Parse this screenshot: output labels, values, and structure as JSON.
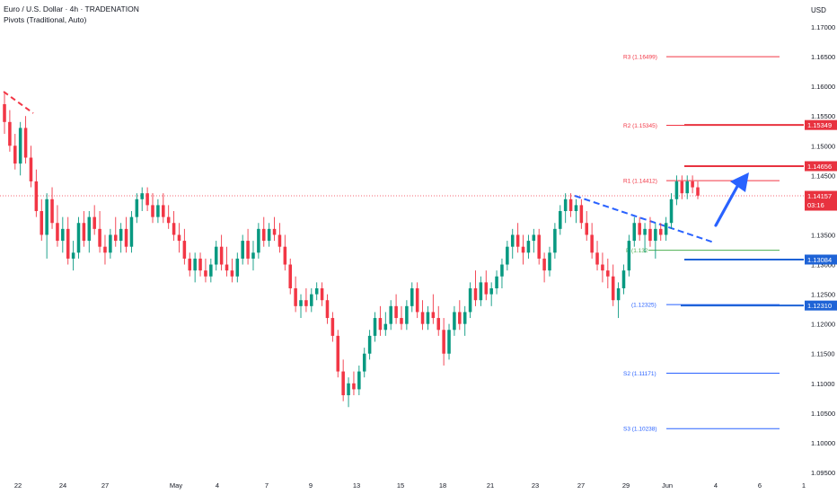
{
  "header": {
    "title": "Euro / U.S. Dollar · 4h · TRADENATION",
    "indicator": "Pivots (Traditional, Auto)"
  },
  "currency_label": "USD",
  "colors": {
    "bull": "#089981",
    "bear": "#f23645",
    "pivot_red": "#f23645",
    "pivot_blue": "#2962ff",
    "pivot_green": "#4caf50",
    "arrow": "#2962ff",
    "tag_blue": "#1e63d6",
    "tag_red": "#e8323f"
  },
  "chart_data": {
    "type": "candlestick",
    "y_axis": {
      "min": 1.0945,
      "max": 1.1745,
      "ticks": [
        "1.17000",
        "1.16500",
        "1.16000",
        "1.15500",
        "1.15000",
        "1.14500",
        "1.14000",
        "1.13500",
        "1.13000",
        "1.12500",
        "1.12000",
        "1.11500",
        "1.11000",
        "1.10500",
        "1.10000",
        "1.09500"
      ]
    },
    "x_axis": {
      "ticks": [
        "22",
        "24",
        "27",
        "May",
        "4",
        "7",
        "9",
        "13",
        "15",
        "18",
        "21",
        "23",
        "27",
        "29",
        "Jun",
        "4",
        "6",
        "1"
      ]
    },
    "pivots": [
      {
        "name": "R3",
        "value": 1.16499,
        "label": "R3 (1.16499)",
        "color": "red"
      },
      {
        "name": "R2",
        "value": 1.15345,
        "label": "R2 (1.15345)",
        "color": "red"
      },
      {
        "name": "R1",
        "value": 1.14412,
        "label": "R1 (1.14412)",
        "color": "red"
      },
      {
        "name": "P",
        "value": 1.1324,
        "label": "P (1.132",
        "color": "green"
      },
      {
        "name": "S1",
        "value": 1.12325,
        "label": "(1.12325)",
        "color": "blue"
      },
      {
        "name": "S2",
        "value": 1.11171,
        "label": "S2 (1.11171)",
        "color": "blue"
      },
      {
        "name": "S3",
        "value": 1.10238,
        "label": "S3 (1.10238)",
        "color": "blue"
      }
    ],
    "price_tags": [
      {
        "value": 1.15349,
        "label": "1.15349",
        "color": "red"
      },
      {
        "value": 1.14656,
        "label": "1.14656",
        "color": "red"
      },
      {
        "value": 1.14157,
        "label": "1.14157",
        "sub": "03:16",
        "color": "red"
      },
      {
        "value": 1.13084,
        "label": "1.13084",
        "color": "blue"
      },
      {
        "value": 1.1231,
        "label": "1.12310",
        "color": "blue"
      }
    ],
    "current_price": 1.14157,
    "candles": [
      [
        1.157,
        1.159,
        1.152,
        1.154
      ],
      [
        1.154,
        1.156,
        1.149,
        1.15
      ],
      [
        1.15,
        1.152,
        1.146,
        1.147
      ],
      [
        1.147,
        1.154,
        1.145,
        1.153
      ],
      [
        1.153,
        1.155,
        1.147,
        1.148
      ],
      [
        1.148,
        1.15,
        1.143,
        1.144
      ],
      [
        1.144,
        1.146,
        1.138,
        1.139
      ],
      [
        1.139,
        1.141,
        1.134,
        1.135
      ],
      [
        1.135,
        1.142,
        1.131,
        1.141
      ],
      [
        1.141,
        1.143,
        1.136,
        1.137
      ],
      [
        1.137,
        1.14,
        1.133,
        1.134
      ],
      [
        1.134,
        1.138,
        1.132,
        1.136
      ],
      [
        1.136,
        1.138,
        1.13,
        1.131
      ],
      [
        1.131,
        1.134,
        1.129,
        1.132
      ],
      [
        1.132,
        1.138,
        1.131,
        1.137
      ],
      [
        1.137,
        1.139,
        1.133,
        1.134
      ],
      [
        1.134,
        1.139,
        1.132,
        1.138
      ],
      [
        1.138,
        1.14,
        1.135,
        1.136
      ],
      [
        1.136,
        1.139,
        1.132,
        1.133
      ],
      [
        1.133,
        1.135,
        1.13,
        1.132
      ],
      [
        1.132,
        1.136,
        1.131,
        1.135
      ],
      [
        1.135,
        1.138,
        1.133,
        1.134
      ],
      [
        1.134,
        1.137,
        1.132,
        1.136
      ],
      [
        1.136,
        1.138,
        1.132,
        1.133
      ],
      [
        1.133,
        1.139,
        1.132,
        1.138
      ],
      [
        1.138,
        1.142,
        1.137,
        1.141
      ],
      [
        1.141,
        1.143,
        1.139,
        1.142
      ],
      [
        1.142,
        1.143,
        1.139,
        1.14
      ],
      [
        1.14,
        1.142,
        1.137,
        1.138
      ],
      [
        1.138,
        1.141,
        1.137,
        1.14
      ],
      [
        1.14,
        1.142,
        1.137,
        1.138
      ],
      [
        1.138,
        1.14,
        1.136,
        1.137
      ],
      [
        1.137,
        1.139,
        1.134,
        1.135
      ],
      [
        1.135,
        1.137,
        1.132,
        1.134
      ],
      [
        1.134,
        1.136,
        1.13,
        1.131
      ],
      [
        1.131,
        1.132,
        1.128,
        1.129
      ],
      [
        1.129,
        1.132,
        1.127,
        1.131
      ],
      [
        1.131,
        1.132,
        1.128,
        1.129
      ],
      [
        1.129,
        1.131,
        1.127,
        1.128
      ],
      [
        1.128,
        1.131,
        1.127,
        1.13
      ],
      [
        1.13,
        1.134,
        1.129,
        1.133
      ],
      [
        1.133,
        1.135,
        1.129,
        1.13
      ],
      [
        1.13,
        1.133,
        1.128,
        1.129
      ],
      [
        1.129,
        1.131,
        1.127,
        1.128
      ],
      [
        1.128,
        1.132,
        1.127,
        1.131
      ],
      [
        1.131,
        1.135,
        1.13,
        1.134
      ],
      [
        1.134,
        1.136,
        1.13,
        1.131
      ],
      [
        1.131,
        1.134,
        1.129,
        1.132
      ],
      [
        1.132,
        1.137,
        1.131,
        1.136
      ],
      [
        1.136,
        1.138,
        1.133,
        1.134
      ],
      [
        1.134,
        1.137,
        1.133,
        1.136
      ],
      [
        1.136,
        1.138,
        1.134,
        1.135
      ],
      [
        1.135,
        1.137,
        1.132,
        1.133
      ],
      [
        1.133,
        1.135,
        1.129,
        1.13
      ],
      [
        1.13,
        1.131,
        1.125,
        1.126
      ],
      [
        1.126,
        1.128,
        1.122,
        1.123
      ],
      [
        1.123,
        1.125,
        1.121,
        1.124
      ],
      [
        1.124,
        1.126,
        1.122,
        1.123
      ],
      [
        1.123,
        1.126,
        1.122,
        1.125
      ],
      [
        1.125,
        1.127,
        1.124,
        1.126
      ],
      [
        1.126,
        1.127,
        1.123,
        1.124
      ],
      [
        1.124,
        1.125,
        1.12,
        1.121
      ],
      [
        1.121,
        1.122,
        1.117,
        1.118
      ],
      [
        1.118,
        1.119,
        1.111,
        1.112
      ],
      [
        1.112,
        1.114,
        1.107,
        1.108
      ],
      [
        1.108,
        1.111,
        1.106,
        1.11
      ],
      [
        1.11,
        1.112,
        1.108,
        1.109
      ],
      [
        1.109,
        1.113,
        1.108,
        1.112
      ],
      [
        1.112,
        1.116,
        1.111,
        1.115
      ],
      [
        1.115,
        1.119,
        1.114,
        1.118
      ],
      [
        1.118,
        1.122,
        1.117,
        1.121
      ],
      [
        1.121,
        1.123,
        1.118,
        1.119
      ],
      [
        1.119,
        1.122,
        1.118,
        1.12
      ],
      [
        1.12,
        1.124,
        1.119,
        1.123
      ],
      [
        1.123,
        1.125,
        1.12,
        1.121
      ],
      [
        1.121,
        1.123,
        1.119,
        1.12
      ],
      [
        1.12,
        1.124,
        1.119,
        1.123
      ],
      [
        1.123,
        1.127,
        1.122,
        1.126
      ],
      [
        1.126,
        1.127,
        1.121,
        1.122
      ],
      [
        1.122,
        1.124,
        1.119,
        1.12
      ],
      [
        1.12,
        1.123,
        1.119,
        1.122
      ],
      [
        1.122,
        1.125,
        1.12,
        1.121
      ],
      [
        1.121,
        1.123,
        1.118,
        1.119
      ],
      [
        1.119,
        1.121,
        1.113,
        1.115
      ],
      [
        1.115,
        1.12,
        1.114,
        1.119
      ],
      [
        1.119,
        1.123,
        1.118,
        1.122
      ],
      [
        1.122,
        1.124,
        1.119,
        1.12
      ],
      [
        1.12,
        1.123,
        1.118,
        1.122
      ],
      [
        1.122,
        1.127,
        1.121,
        1.126
      ],
      [
        1.126,
        1.129,
        1.123,
        1.124
      ],
      [
        1.124,
        1.128,
        1.123,
        1.127
      ],
      [
        1.127,
        1.129,
        1.124,
        1.125
      ],
      [
        1.125,
        1.127,
        1.123,
        1.126
      ],
      [
        1.126,
        1.129,
        1.125,
        1.128
      ],
      [
        1.128,
        1.131,
        1.126,
        1.13
      ],
      [
        1.13,
        1.134,
        1.129,
        1.133
      ],
      [
        1.133,
        1.136,
        1.131,
        1.135
      ],
      [
        1.135,
        1.137,
        1.132,
        1.133
      ],
      [
        1.133,
        1.135,
        1.13,
        1.132
      ],
      [
        1.132,
        1.135,
        1.131,
        1.134
      ],
      [
        1.134,
        1.136,
        1.132,
        1.135
      ],
      [
        1.135,
        1.136,
        1.13,
        1.131
      ],
      [
        1.131,
        1.132,
        1.127,
        1.129
      ],
      [
        1.129,
        1.133,
        1.128,
        1.132
      ],
      [
        1.132,
        1.137,
        1.131,
        1.136
      ],
      [
        1.136,
        1.14,
        1.135,
        1.139
      ],
      [
        1.139,
        1.142,
        1.137,
        1.141
      ],
      [
        1.141,
        1.142,
        1.138,
        1.139
      ],
      [
        1.139,
        1.141,
        1.137,
        1.14
      ],
      [
        1.14,
        1.141,
        1.136,
        1.137
      ],
      [
        1.137,
        1.139,
        1.134,
        1.135
      ],
      [
        1.135,
        1.137,
        1.131,
        1.132
      ],
      [
        1.132,
        1.134,
        1.129,
        1.13
      ],
      [
        1.13,
        1.132,
        1.127,
        1.129
      ],
      [
        1.129,
        1.131,
        1.126,
        1.128
      ],
      [
        1.128,
        1.13,
        1.123,
        1.124
      ],
      [
        1.124,
        1.127,
        1.121,
        1.126
      ],
      [
        1.126,
        1.13,
        1.125,
        1.129
      ],
      [
        1.129,
        1.135,
        1.128,
        1.134
      ],
      [
        1.134,
        1.138,
        1.133,
        1.137
      ],
      [
        1.137,
        1.138,
        1.134,
        1.135
      ],
      [
        1.135,
        1.137,
        1.132,
        1.136
      ],
      [
        1.136,
        1.138,
        1.133,
        1.134
      ],
      [
        1.134,
        1.137,
        1.131,
        1.136
      ],
      [
        1.136,
        1.137,
        1.134,
        1.135
      ],
      [
        1.135,
        1.138,
        1.134,
        1.137
      ],
      [
        1.137,
        1.142,
        1.136,
        1.141
      ],
      [
        1.141,
        1.145,
        1.14,
        1.144
      ],
      [
        1.144,
        1.145,
        1.141,
        1.142
      ],
      [
        1.142,
        1.145,
        1.141,
        1.144
      ],
      [
        1.144,
        1.145,
        1.142,
        1.143
      ],
      [
        1.143,
        1.144,
        1.141,
        1.1416
      ]
    ]
  }
}
